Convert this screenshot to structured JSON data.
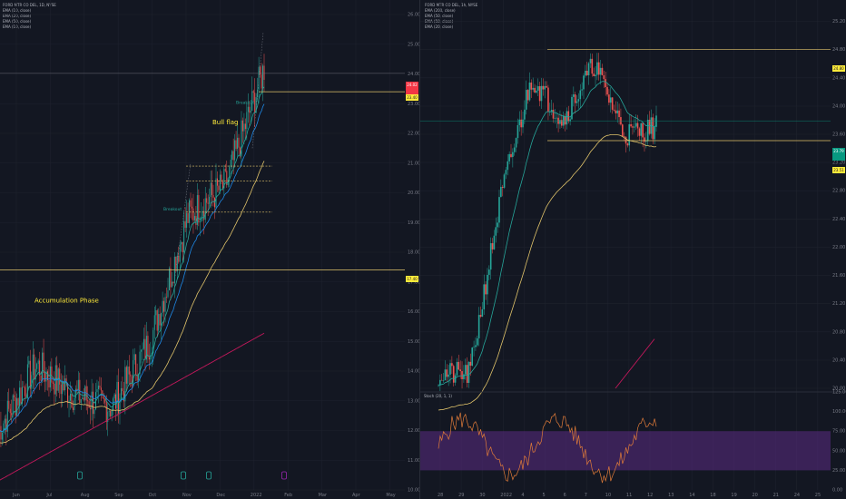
{
  "colors": {
    "background": "#131722",
    "grid": "#1e222d",
    "up": "#26a69a",
    "down": "#ef5350",
    "ema10": "#26a69a",
    "ema20": "#1e88e5",
    "ema50": "#e0c36a",
    "ema200": "#c2185b",
    "level": "#e0c36a",
    "stoch_fill": "#5b2c83",
    "stoch_line": "#e07b39",
    "price_red": "#f23645",
    "price_yellow": "#ffeb3b",
    "price_teal": "#089981"
  },
  "left": {
    "title": "FORD MTR CO DEL, 1D, NYSE",
    "legend": [
      "EMA (10, close)",
      "EMA (20, close)",
      "EMA (50, close)",
      "EMA (10, close)"
    ],
    "price_axis_ticks": [
      "26.00",
      "25.00",
      "24.00",
      "23.00",
      "22.00",
      "21.00",
      "20.00",
      "19.00",
      "18.00",
      "17.00",
      "16.00",
      "15.00",
      "14.00",
      "13.00",
      "12.00",
      "11.00",
      "10.00"
    ],
    "time_axis_ticks": [
      "Jun",
      "Jul",
      "Aug",
      "Sep",
      "Oct",
      "Nov",
      "Dec",
      "2022",
      "Feb",
      "Mar",
      "Apr",
      "May"
    ],
    "price_labels": [
      {
        "text": "24.02",
        "color": "red"
      },
      {
        "text": "23.40",
        "color": "yellow"
      },
      {
        "text": "17.40",
        "color": "yellow"
      }
    ],
    "annotations": {
      "accumulation": "Accumulation Phase",
      "bull_flag": "Bull flag",
      "breakout1": "Breakout",
      "breakout2": "Breakout"
    }
  },
  "right": {
    "title": "FORD MTR CO DEL, 1h, NYSE",
    "legend": [
      "EMA (200, close)",
      "EMA (50, close)",
      "EMA (50, close)",
      "EMA (20, close)"
    ],
    "price_axis_ticks": [
      "25.20",
      "24.80",
      "24.40",
      "24.00",
      "23.60",
      "23.20",
      "22.80",
      "22.40",
      "22.00",
      "21.60",
      "21.20",
      "20.80",
      "20.40",
      "20.00"
    ],
    "time_axis_ticks": [
      "28",
      "29",
      "30",
      "2022",
      "4",
      "5",
      "6",
      "7",
      "10",
      "11",
      "12",
      "13",
      "14",
      "18",
      "19",
      "20",
      "21",
      "24",
      "25"
    ],
    "price_labels": [
      {
        "text": "24.80",
        "color": "yellow"
      },
      {
        "text": "23.79",
        "color": "teal"
      },
      {
        "text": "23.51",
        "color": "yellow"
      }
    ],
    "stoch_title": "Stoch (20, 1, 1)",
    "stoch_ticks": [
      "125.00",
      "100.00",
      "75.00",
      "50.00",
      "25.00",
      "0.00"
    ]
  },
  "chart_data": [
    {
      "type": "candlestick",
      "title": "FORD MTR CO DEL, 1D, NYSE",
      "x_range": [
        "Jun",
        "May"
      ],
      "ylim": [
        10,
        26
      ],
      "levels": [
        23.4,
        17.4
      ],
      "current_price": 24.02,
      "indicators": [
        "EMA 10",
        "EMA 20",
        "EMA 50",
        "EMA 10"
      ],
      "trend_key_points": [
        {
          "x": "Jun",
          "close": 12.0
        },
        {
          "x": "Jul",
          "close": 14.2
        },
        {
          "x": "Aug",
          "close": 13.2
        },
        {
          "x": "Sep",
          "close": 12.8
        },
        {
          "x": "Oct",
          "close": 15.0
        },
        {
          "x": "Nov",
          "close": 19.2
        },
        {
          "x": "Dec",
          "close": 20.3
        },
        {
          "x": "2022",
          "close": 24.2
        }
      ]
    },
    {
      "type": "candlestick",
      "title": "FORD MTR CO DEL, 1h, NYSE",
      "ylim": [
        20.0,
        25.4
      ],
      "levels": [
        24.8,
        23.51
      ],
      "current_price": 23.79,
      "indicators": [
        "EMA 200",
        "EMA 50",
        "EMA 50",
        "EMA 20"
      ],
      "trend_key_points": [
        {
          "x": "28",
          "close": 20.2
        },
        {
          "x": "2022",
          "close": 20.2
        },
        {
          "x": "4",
          "close": 22.7
        },
        {
          "x": "5",
          "close": 24.4
        },
        {
          "x": "6",
          "close": 23.8
        },
        {
          "x": "7",
          "close": 24.6
        },
        {
          "x": "10",
          "close": 23.6
        },
        {
          "x": "11",
          "close": 23.7
        }
      ],
      "stochastic": {
        "name": "Stoch (20, 1, 1)",
        "ylim": [
          0,
          125
        ],
        "band": [
          25,
          75
        ]
      }
    }
  ]
}
